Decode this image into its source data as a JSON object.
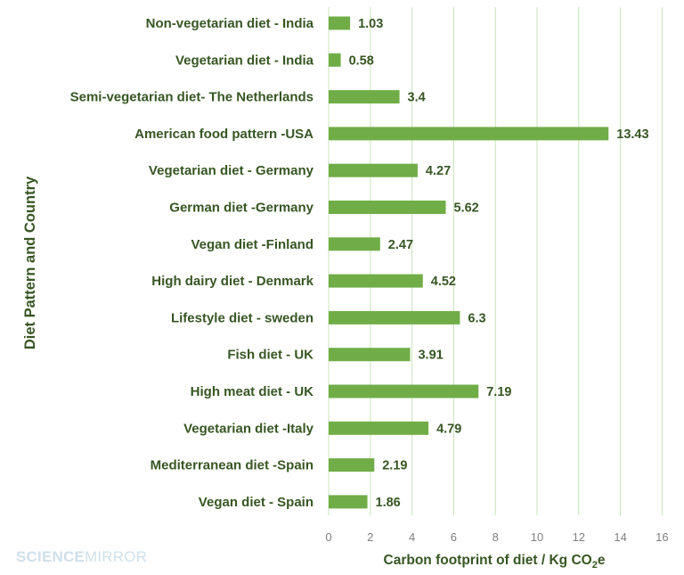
{
  "chart_data": {
    "type": "bar",
    "orientation": "horizontal",
    "categories": [
      "Non-vegetarian diet - India",
      "Vegetarian diet - India",
      "Semi-vegetarian diet- The Netherlands",
      "American food pattern -USA",
      "Vegetarian diet - Germany",
      "German diet -Germany",
      "Vegan diet -Finland",
      "High dairy diet - Denmark",
      "Lifestyle diet - sweden",
      "Fish diet - UK",
      "High meat diet - UK",
      "Vegetarian diet -Italy",
      "Mediterranean diet -Spain",
      "Vegan diet - Spain"
    ],
    "values": [
      1.03,
      0.58,
      3.4,
      13.43,
      4.27,
      5.62,
      2.47,
      4.52,
      6.3,
      3.91,
      7.19,
      4.79,
      2.19,
      1.86
    ],
    "data_labels": [
      "1.03",
      "0.58",
      "3.4",
      "13.43",
      "4.27",
      "5.62",
      "2.47",
      "4.52",
      "6.3",
      "3.91",
      "7.19",
      "4.79",
      "2.19",
      "1.86"
    ],
    "xlabel_prefix": "Carbon footprint of diet / Kg CO",
    "xlabel_subscript": "2",
    "xlabel_suffix": "e",
    "ylabel": "Diet Pattern and Country",
    "xlim": [
      0,
      16
    ],
    "xticks": [
      0,
      2,
      4,
      6,
      8,
      10,
      12,
      14,
      16
    ],
    "grid": "vertical",
    "legend": "none"
  },
  "colors": {
    "bar": "#70ad47",
    "gridline": "#c9e3b8",
    "text": "#375623",
    "tick_text": "#7f7f7f",
    "watermark": "#cfe0ea"
  },
  "watermark": {
    "bold_part": "SCIENCE",
    "light_part": "MIRROR"
  }
}
